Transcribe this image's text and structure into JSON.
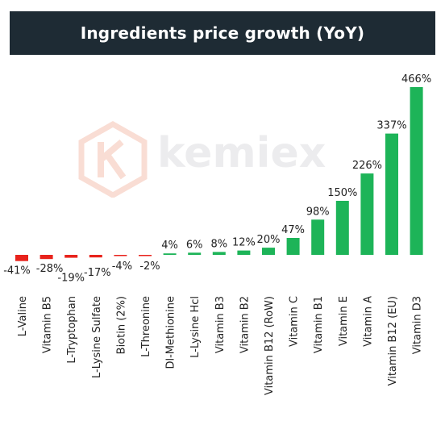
{
  "header": {
    "title": "Ingredients price growth (YoY)"
  },
  "watermark": {
    "text": "kemiex"
  },
  "colors": {
    "positive": "#1db458",
    "negative": "#e8231c",
    "title_bg": "#1e2b34"
  },
  "chart_data": {
    "type": "bar",
    "title": "Ingredients price growth (YoY)",
    "xlabel": "",
    "ylabel": "",
    "categories": [
      "L-Valine",
      "Vitamin B5",
      "L-Tryptophan",
      "L-Lysine Sulfate",
      "Biotin (2%)",
      "L-Threonine",
      "Dl-Methionine",
      "L-Lysine Hcl",
      "Vitamin B3",
      "Vitamin B2",
      "Vitamin B12 (RoW)",
      "Vitamin C",
      "Vitamin B1",
      "Vitamin E",
      "Vitamin A",
      "Vitamin B12 (EU)",
      "Vitamin D3"
    ],
    "values": [
      -41,
      -28,
      -19,
      -17,
      -4,
      -2,
      4,
      6,
      8,
      12,
      20,
      47,
      98,
      150,
      226,
      337,
      466
    ],
    "labels": [
      "-41%",
      "-28%",
      "-19%",
      "-17%",
      "-4%",
      "-2%",
      "4%",
      "6%",
      "8%",
      "12%",
      "20%",
      "47%",
      "98%",
      "150%",
      "226%",
      "337%",
      "466%"
    ],
    "grid": false,
    "legend": "none"
  }
}
